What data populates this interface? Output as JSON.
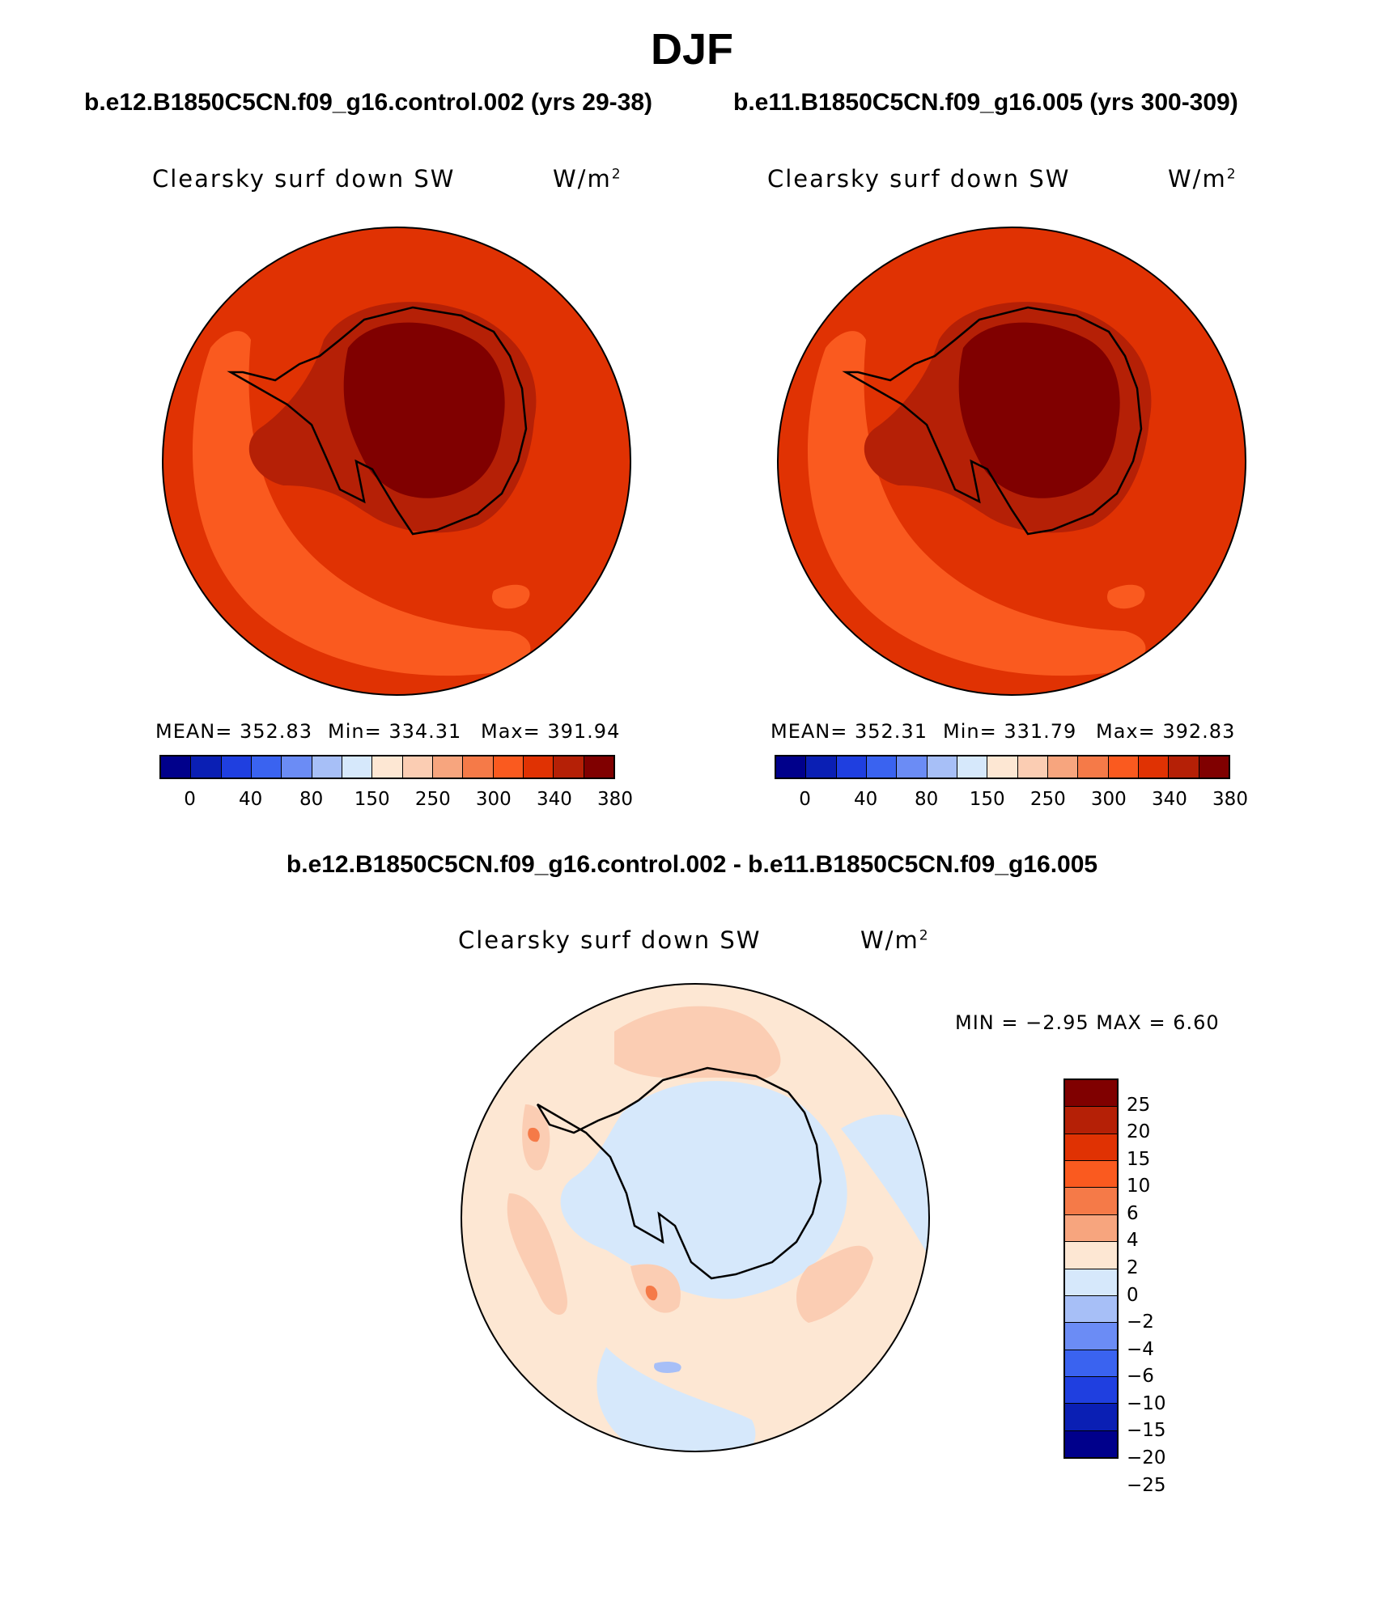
{
  "season": "DJF",
  "panels": [
    {
      "case": "b.e12.B1850C5CN.f09_g16.control.002 (yrs 29-38)",
      "variable": "Clearsky surf down SW",
      "units": "W/m",
      "units_sup": "2",
      "stats": {
        "mean": "MEAN= 352.83",
        "min": "Min= 334.31",
        "max": "Max= 391.94"
      }
    },
    {
      "case": "b.e11.B1850C5CN.f09_g16.005 (yrs 300-309)",
      "variable": "Clearsky surf down SW",
      "units": "W/m",
      "units_sup": "2",
      "stats": {
        "mean": "MEAN= 352.31",
        "min": "Min= 331.79",
        "max": "Max= 392.83"
      }
    }
  ],
  "abs_colorbar": {
    "colors": [
      "#00008b",
      "#0a1fb4",
      "#1f3fe0",
      "#3a63f0",
      "#6b8cf5",
      "#a7bff7",
      "#d6e8fb",
      "#fde7d3",
      "#fbcdb3",
      "#f7a57e",
      "#f57a48",
      "#fa5a1f",
      "#e03203",
      "#b52006",
      "#800000"
    ],
    "labels": [
      "0",
      "40",
      "80",
      "150",
      "250",
      "300",
      "340",
      "380"
    ]
  },
  "diff": {
    "title": "b.e12.B1850C5CN.f09_g16.control.002 - b.e11.B1850C5CN.f09_g16.005",
    "variable": "Clearsky surf down SW",
    "units": "W/m",
    "units_sup": "2",
    "minmax": "MIN =   −2.95 MAX =    6.60",
    "colorbar": {
      "colors": [
        "#800000",
        "#b52006",
        "#e03203",
        "#fa5a1f",
        "#f57a48",
        "#f7a57e",
        "#fde7d3",
        "#d6e8fb",
        "#a7bff7",
        "#6b8cf5",
        "#3a63f0",
        "#1f3fe0",
        "#0a1fb4",
        "#00008b"
      ],
      "labels": [
        "25",
        "20",
        "15",
        "10",
        "6",
        "4",
        "2",
        "0",
        "−2",
        "−4",
        "−6",
        "−10",
        "−15",
        "−20",
        "−25"
      ]
    }
  }
}
